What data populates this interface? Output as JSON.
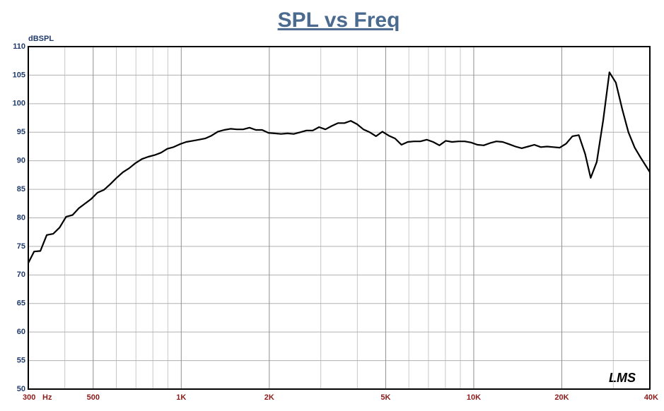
{
  "chart_data": {
    "type": "line",
    "title": "SPL vs Freq",
    "y_label": "dBSPL",
    "x_label": "Hz",
    "annotation": "LMS",
    "x": [
      300,
      314,
      330,
      347,
      365,
      384,
      404,
      425,
      447,
      469,
      492,
      517,
      544,
      572,
      601,
      632,
      664,
      698,
      734,
      771,
      811,
      852,
      896,
      941,
      989,
      1040,
      1093,
      1149,
      1207,
      1269,
      1334,
      1402,
      1474,
      1549,
      1628,
      1711,
      1799,
      1890,
      1987,
      2088,
      2195,
      2307,
      2425,
      2549,
      2679,
      2816,
      2960,
      3111,
      3270,
      3437,
      3613,
      3798,
      3992,
      4196,
      4410,
      4636,
      4873,
      5122,
      5384,
      5659,
      5948,
      6252,
      6572,
      6908,
      7261,
      7632,
      8022,
      8432,
      8863,
      9316,
      9793,
      10290,
      10820,
      11370,
      11950,
      12560,
      13210,
      13880,
      14590,
      15340,
      16120,
      16950,
      17810,
      18720,
      19680,
      20690,
      21750,
      22860,
      24030,
      25100,
      26340,
      27700,
      29100,
      30600,
      32200,
      33800,
      35500,
      37350,
      40000
    ],
    "series": [
      {
        "name": "SPL",
        "color": "#000000",
        "values": [
          72.1,
          74.1,
          74.2,
          77.0,
          77.2,
          78.3,
          80.2,
          80.5,
          81.7,
          82.5,
          83.3,
          84.4,
          84.9,
          85.9,
          87.0,
          88.0,
          88.7,
          89.6,
          90.3,
          90.7,
          91.0,
          91.4,
          92.1,
          92.4,
          92.9,
          93.3,
          93.5,
          93.7,
          93.9,
          94.4,
          95.1,
          95.4,
          95.6,
          95.5,
          95.5,
          95.8,
          95.4,
          95.4,
          94.9,
          94.8,
          94.7,
          94.8,
          94.7,
          95.0,
          95.3,
          95.3,
          95.9,
          95.5,
          96.1,
          96.6,
          96.6,
          97.0,
          96.4,
          95.5,
          95.0,
          94.3,
          95.1,
          94.4,
          93.9,
          92.8,
          93.3,
          93.4,
          93.4,
          93.7,
          93.3,
          92.7,
          93.5,
          93.3,
          93.4,
          93.4,
          93.2,
          92.8,
          92.7,
          93.1,
          93.4,
          93.3,
          92.9,
          92.5,
          92.2,
          92.5,
          92.8,
          92.4,
          92.5,
          92.4,
          92.3,
          93.0,
          94.3,
          94.5,
          91.2,
          87.0,
          89.8,
          97.1,
          105.5,
          103.7,
          99.0,
          95.0,
          92.3,
          90.4,
          88.0
        ]
      }
    ],
    "xlim": [
      300,
      40000
    ],
    "xlog": true,
    "xticks": [
      {
        "value": 300,
        "label": "300"
      },
      {
        "value": 500,
        "label": "500"
      },
      {
        "value": 1000,
        "label": "1K"
      },
      {
        "value": 2000,
        "label": "2K"
      },
      {
        "value": 5000,
        "label": "5K"
      },
      {
        "value": 10000,
        "label": "10K"
      },
      {
        "value": 20000,
        "label": "20K"
      },
      {
        "value": 40000,
        "label": "40K"
      }
    ],
    "xminorticks": [
      400,
      600,
      700,
      800,
      900,
      3000,
      4000,
      6000,
      7000,
      8000,
      9000,
      30000
    ],
    "ylim": [
      50,
      110
    ],
    "yticks": [
      50,
      55,
      60,
      65,
      70,
      75,
      80,
      85,
      90,
      95,
      100,
      105,
      110
    ],
    "grid": true
  }
}
